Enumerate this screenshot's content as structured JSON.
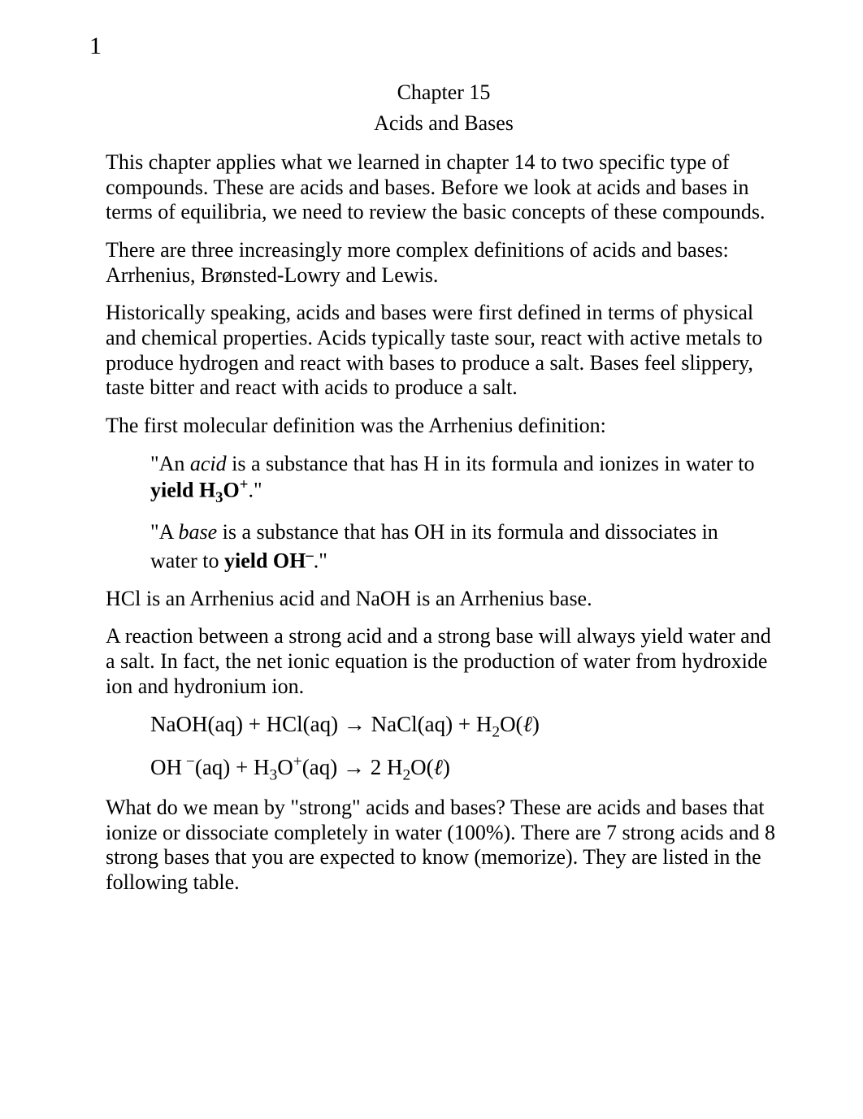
{
  "page": {
    "number": "1"
  },
  "chapter": {
    "title": "Chapter 15",
    "subtitle": "Acids and Bases"
  },
  "p1": "This chapter applies what we learned in chapter 14 to two specific type of compounds. These are acids and bases. Before we look at acids and bases in terms of equilibria, we need to review the basic concepts of these compounds.",
  "p2": "There are three increasingly more complex definitions of acids and bases: Arrhenius, Brønsted-Lowry and Lewis.",
  "p3": "Historically speaking, acids and bases were first defined in terms of physical and chemical properties. Acids typically taste sour, react with active metals to produce hydrogen and react with bases to produce a salt. Bases feel slippery, taste bitter and react with acids to produce a salt.",
  "p4": "The first molecular definition was the Arrhenius definition:",
  "q1": {
    "t1": "\"An ",
    "italic": "acid",
    "t2": " is a substance that has H in its formula and ionizes in water to ",
    "bold1": "yield H",
    "sub": "3",
    "bold2": "O",
    "sup": "+",
    "t3": ".\""
  },
  "q2": {
    "t1": "\"A ",
    "italic": "base",
    "t2": " is a substance that has OH in its formula and dissociates in water to ",
    "bold1": "yield OH",
    "sup": "–",
    "t3": ".\""
  },
  "p5": "HCl is an Arrhenius acid and NaOH is an Arrhenius base.",
  "p6": "A reaction between a strong acid and a strong base will always yield water and a salt. In fact, the net ionic equation is the production of water from hydroxide ion and hydronium ion.",
  "eq1": {
    "seg1": "NaOH(aq)  +  HCl(aq)   ",
    "arrow": "→",
    "seg2": "   NaCl(aq)  +  H",
    "sub1": "2",
    "seg3": "O(",
    "ell": "ℓ",
    "seg4": ")"
  },
  "eq2": {
    "seg1": "OH",
    "sup1": " −",
    "seg2": "(aq)  + H",
    "sub1": "3",
    "seg3": "O",
    "sup2": "+",
    "seg4": "(aq)   ",
    "arrow": "→",
    "seg5": "   2 H",
    "sub2": "2",
    "seg6": "O(",
    "ell": "ℓ",
    "seg7": ")"
  },
  "p7": "What do we mean by \"strong\" acids and bases? These are acids and bases that ionize or dissociate completely in water (100%). There are 7 strong acids and 8 strong bases that you are expected to know (memorize). They are listed in the following table."
}
